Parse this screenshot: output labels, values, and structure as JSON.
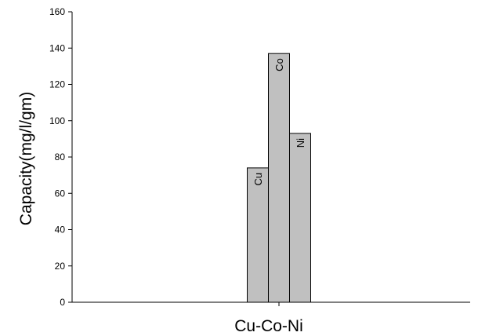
{
  "chart_data": {
    "type": "bar",
    "title": "",
    "xlabel": "Cu-Co-Ni",
    "ylabel": "Capacity(mg/l/gm)",
    "ylim": [
      0,
      160
    ],
    "yticks": [
      0,
      20,
      40,
      60,
      80,
      100,
      120,
      140,
      160
    ],
    "grid": false,
    "legend": "none",
    "bar_color": "#c0c0c0",
    "bar_edge_color": "#000000",
    "group": "Cu-Co-Ni",
    "categories": [
      "Cu",
      "Co",
      "Ni"
    ],
    "values": [
      74,
      137,
      93
    ]
  }
}
